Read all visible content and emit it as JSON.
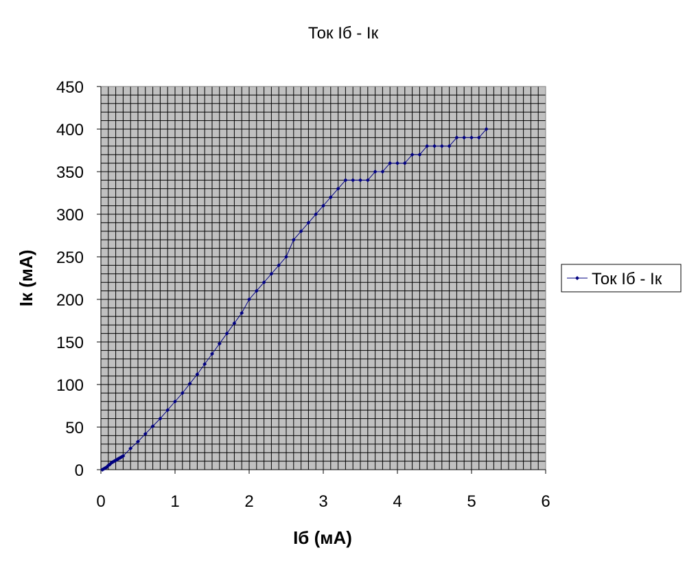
{
  "chart_data": {
    "type": "scatter",
    "title": "Ток Iб - Iк",
    "xlabel": "Iб (мА)",
    "ylabel": "Iк (мА)",
    "xlim": [
      0,
      6
    ],
    "ylim": [
      0,
      450
    ],
    "x_ticks": [
      "0",
      "1",
      "2",
      "3",
      "4",
      "5",
      "6"
    ],
    "y_ticks": [
      "0",
      "50",
      "100",
      "150",
      "200",
      "250",
      "300",
      "350",
      "400",
      "450"
    ],
    "grid": true,
    "legend": "right",
    "plot_background": "#C0C0C0",
    "series_color": "#000080",
    "series": [
      {
        "name": "Ток Iб - Iк",
        "x": [
          0.02,
          0.04,
          0.06,
          0.08,
          0.1,
          0.12,
          0.14,
          0.16,
          0.18,
          0.2,
          0.22,
          0.24,
          0.26,
          0.28,
          0.3,
          0.4,
          0.5,
          0.6,
          0.7,
          0.8,
          0.9,
          1.0,
          1.1,
          1.2,
          1.3,
          1.4,
          1.5,
          1.6,
          1.7,
          1.8,
          1.9,
          2.0,
          2.1,
          2.2,
          2.3,
          2.4,
          2.5,
          2.6,
          2.7,
          2.8,
          2.9,
          3.0,
          3.1,
          3.2,
          3.3,
          3.4,
          3.5,
          3.6,
          3.7,
          3.8,
          3.9,
          4.0,
          4.1,
          4.2,
          4.3,
          4.4,
          4.5,
          4.6,
          4.7,
          4.8,
          4.9,
          5.0,
          5.1,
          5.2
        ],
        "y": [
          0,
          1,
          2,
          3,
          5,
          6,
          8,
          9,
          10,
          11,
          12,
          13,
          14,
          15,
          16,
          25,
          33,
          42,
          51,
          60,
          70,
          80,
          90,
          101,
          112,
          124,
          136,
          148,
          160,
          172,
          184,
          200,
          210,
          220,
          230,
          240,
          250,
          270,
          280,
          290,
          300,
          310,
          320,
          330,
          340,
          340,
          340,
          340,
          350,
          350,
          360,
          360,
          360,
          370,
          370,
          380,
          380,
          380,
          380,
          390,
          390,
          390,
          390,
          400
        ]
      }
    ]
  }
}
